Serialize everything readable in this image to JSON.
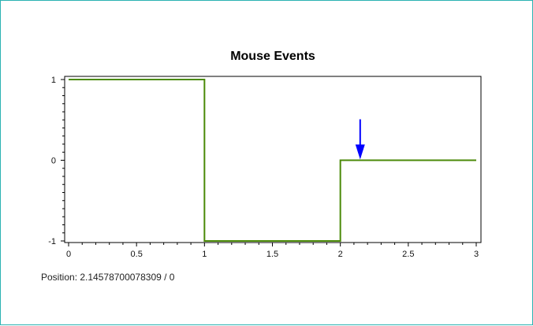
{
  "chart_data": {
    "type": "line",
    "title": "Mouse Events",
    "xlabel": "",
    "ylabel": "",
    "xlim": [
      0,
      3
    ],
    "ylim": [
      -1,
      1
    ],
    "x_ticks": [
      0,
      0.5,
      1,
      1.5,
      2,
      2.5,
      3
    ],
    "x_tick_labels": [
      "0",
      "0.5",
      "1",
      "1.5",
      "2",
      "2.5",
      "3"
    ],
    "y_ticks": [
      -1,
      0,
      1
    ],
    "y_tick_labels": [
      "-1",
      "0",
      "1"
    ],
    "grid": false,
    "series": [
      {
        "color": "#4b8a08",
        "step": true,
        "x": [
          0,
          1,
          1,
          2,
          2,
          3
        ],
        "y": [
          1,
          1,
          -1,
          -1,
          0,
          0
        ]
      }
    ],
    "annotations": [
      {
        "type": "arrow",
        "x": 2.1458,
        "y": 0,
        "color": "#0000ff"
      }
    ]
  },
  "status": {
    "position_text": "Position: 2.14578700078309 / 0"
  }
}
